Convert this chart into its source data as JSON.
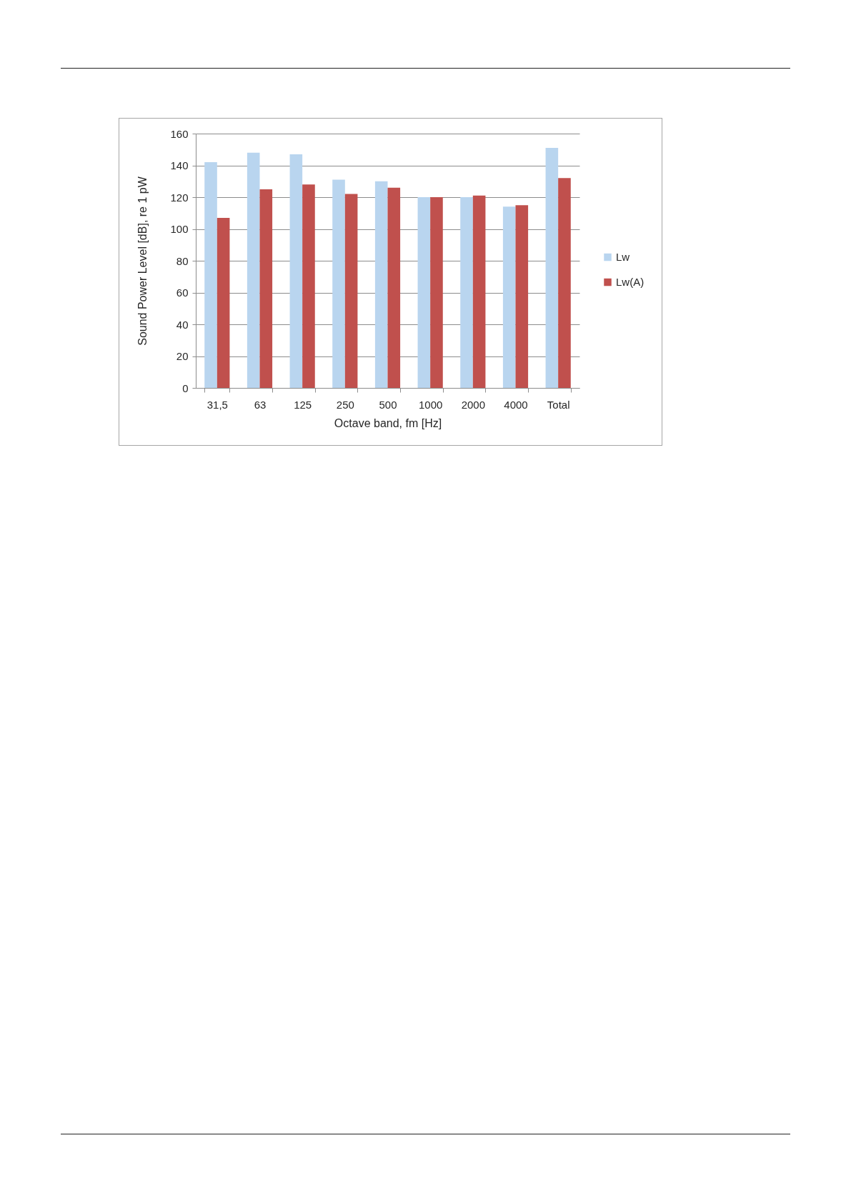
{
  "chart_data": {
    "type": "bar",
    "xlabel": "Octave band, fm [Hz]",
    "ylabel": "Sound Power Level [dB], re 1 pW",
    "categories": [
      "31,5",
      "63",
      "125",
      "250",
      "500",
      "1000",
      "2000",
      "4000",
      "Total"
    ],
    "series": [
      {
        "name": "Lw",
        "color": "#b9d5ef",
        "values": [
          142,
          148,
          147,
          131,
          130,
          120,
          120,
          114,
          151
        ]
      },
      {
        "name": "Lw(A)",
        "color": "#c0504d",
        "values": [
          107,
          125,
          128,
          122,
          126,
          120,
          121,
          115,
          132
        ]
      }
    ],
    "ylim": [
      0,
      160
    ],
    "yticks": [
      0,
      20,
      40,
      60,
      80,
      100,
      120,
      140,
      160
    ],
    "grid": "y",
    "legend": "right"
  }
}
